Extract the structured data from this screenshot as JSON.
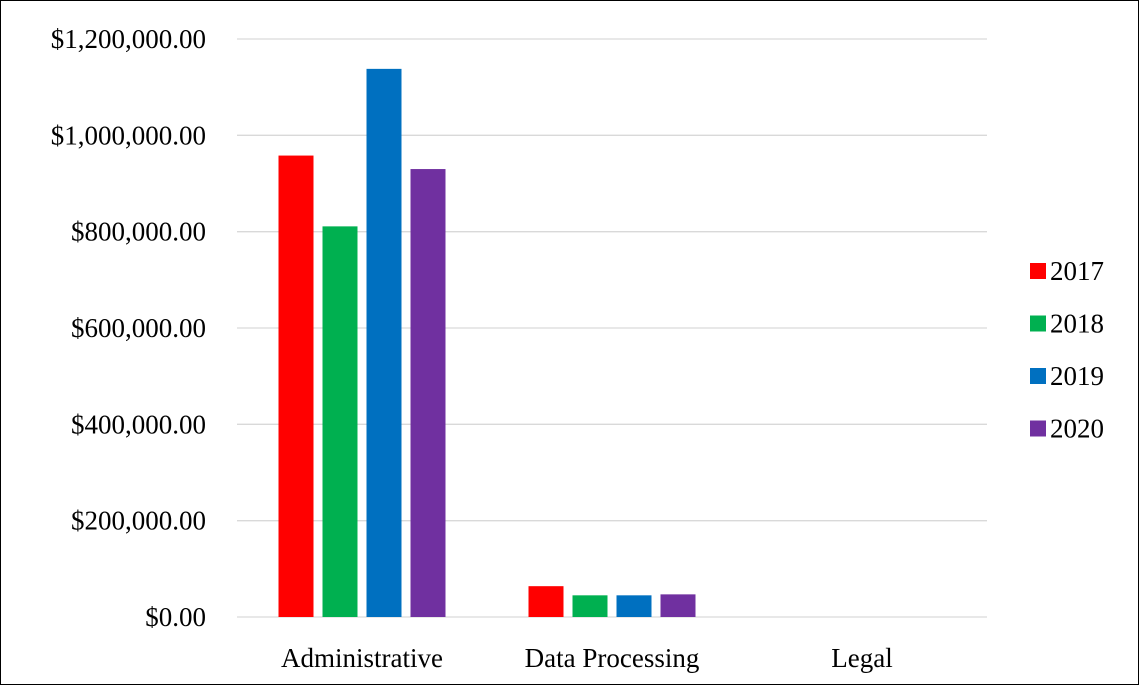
{
  "chart_data": {
    "type": "bar",
    "title": "",
    "xlabel": "",
    "ylabel": "",
    "categories": [
      "Administrative",
      "Data Processing",
      "Legal"
    ],
    "series": [
      {
        "name": "2017",
        "color": "#ff0000",
        "values": [
          958000,
          64000,
          0
        ]
      },
      {
        "name": "2018",
        "color": "#00b050",
        "values": [
          811000,
          45000,
          0
        ]
      },
      {
        "name": "2019",
        "color": "#0070c0",
        "values": [
          1138000,
          45000,
          0
        ]
      },
      {
        "name": "2020",
        "color": "#7030a0",
        "values": [
          930000,
          47000,
          0
        ]
      }
    ],
    "ylim": [
      0,
      1200000
    ],
    "yticks": [
      0,
      200000,
      400000,
      600000,
      800000,
      1000000,
      1200000
    ],
    "ytick_labels": [
      "$0.00",
      "$200,000.00",
      "$400,000.00",
      "$600,000.00",
      "$800,000.00",
      "$1,000,000.00",
      "$1,200,000.00"
    ],
    "grid": true,
    "gridline_color": "#d9d9d9",
    "legend_position": "right"
  }
}
